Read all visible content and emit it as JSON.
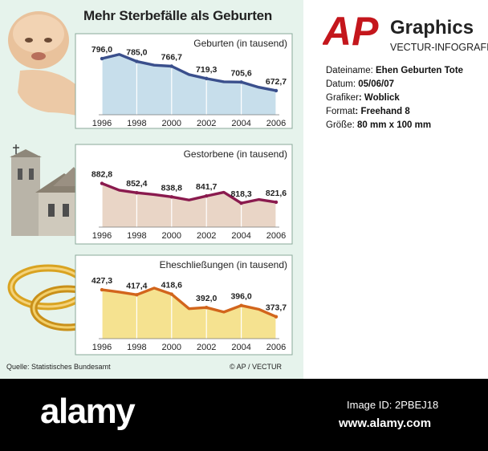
{
  "title": "Mehr Sterbefälle als Geburten",
  "source": "Quelle: Statistisches Bundesamt",
  "copyright": "©  AP / VECTUR",
  "brand": {
    "logo_letters": "AP",
    "graphics": "Graphics",
    "subtitle": "VECTUR-INFOGRAFIK",
    "red": "#c4161c"
  },
  "meta": [
    {
      "label": "Dateiname: ",
      "value": "Ehen Geburten Tote"
    },
    {
      "label": "Datum: ",
      "value": "05/06/07"
    },
    {
      "label": "Grafiker",
      "value": ": Woblick"
    },
    {
      "label": "Format",
      "value": ": Freehand 8"
    },
    {
      "label": "Größe: ",
      "value": "80 mm x 100 mm"
    }
  ],
  "footer": {
    "logo": "alamy",
    "image_id": "Image ID: 2PBEJ18",
    "url": "www.alamy.com"
  },
  "icons": [
    "baby-photo",
    "church-photo",
    "wedding-rings-photo"
  ],
  "chart_data": [
    {
      "type": "area",
      "title_bold": "Geburten",
      "title_unit": " (in tausend)",
      "x": [
        1996,
        1997,
        1998,
        1999,
        2000,
        2001,
        2002,
        2003,
        2004,
        2005,
        2006
      ],
      "x_ticks": [
        "1996",
        "1998",
        "2000",
        "2002",
        "2004",
        "2006"
      ],
      "values": [
        796.0,
        812.2,
        785.0,
        770.7,
        766.7,
        734.5,
        719.3,
        706.7,
        705.6,
        685.8,
        672.7
      ],
      "labels": [
        {
          "x": 1996,
          "text": "796,0"
        },
        {
          "x": 1998,
          "text": "785,0"
        },
        {
          "x": 2000,
          "text": "766,7"
        },
        {
          "x": 2002,
          "text": "719,3"
        },
        {
          "x": 2004,
          "text": "705,6"
        },
        {
          "x": 2006,
          "text": "672,7"
        }
      ],
      "ylim": [
        580,
        830
      ],
      "line_color": "#3a4f8c",
      "fill_color": "#c4dcea",
      "grid": true
    },
    {
      "type": "area",
      "title_bold": "Gestorbene",
      "title_unit": " (in tausend)",
      "x": [
        1996,
        1997,
        1998,
        1999,
        2000,
        2001,
        2002,
        2003,
        2004,
        2005,
        2006
      ],
      "x_ticks": [
        "1996",
        "1998",
        "2000",
        "2002",
        "2004",
        "2006"
      ],
      "values": [
        882.8,
        860.4,
        852.4,
        846.3,
        838.8,
        828.5,
        841.7,
        853.9,
        818.3,
        830.2,
        821.6
      ],
      "labels": [
        {
          "x": 1996,
          "text": "882,8"
        },
        {
          "x": 1998,
          "text": "852,4"
        },
        {
          "x": 2000,
          "text": "838,8"
        },
        {
          "x": 2002,
          "text": "841,7"
        },
        {
          "x": 2004,
          "text": "818,3"
        },
        {
          "x": 2006,
          "text": "821,6"
        }
      ],
      "ylim": [
        740,
        900
      ],
      "line_color": "#8a1a4e",
      "fill_color": "#e8d3c3",
      "grid": true
    },
    {
      "type": "area",
      "title_bold": "Eheschließungen",
      "title_unit": " (in tausend)",
      "x": [
        1996,
        1997,
        1998,
        1999,
        2000,
        2001,
        2002,
        2003,
        2004,
        2005,
        2006
      ],
      "x_ticks": [
        "1996",
        "1998",
        "2000",
        "2002",
        "2004",
        "2006"
      ],
      "values": [
        427.3,
        422.8,
        417.4,
        430.7,
        418.6,
        389.6,
        392.0,
        382.9,
        396.0,
        388.5,
        373.7
      ],
      "labels": [
        {
          "x": 1996,
          "text": "427,3"
        },
        {
          "x": 1998,
          "text": "417,4"
        },
        {
          "x": 2000,
          "text": "418,6"
        },
        {
          "x": 2002,
          "text": "392,0"
        },
        {
          "x": 2004,
          "text": "396,0"
        },
        {
          "x": 2006,
          "text": "373,7"
        }
      ],
      "ylim": [
        330,
        445
      ],
      "line_color": "#d2651c",
      "fill_color": "#f4e08a",
      "grid": true
    }
  ]
}
